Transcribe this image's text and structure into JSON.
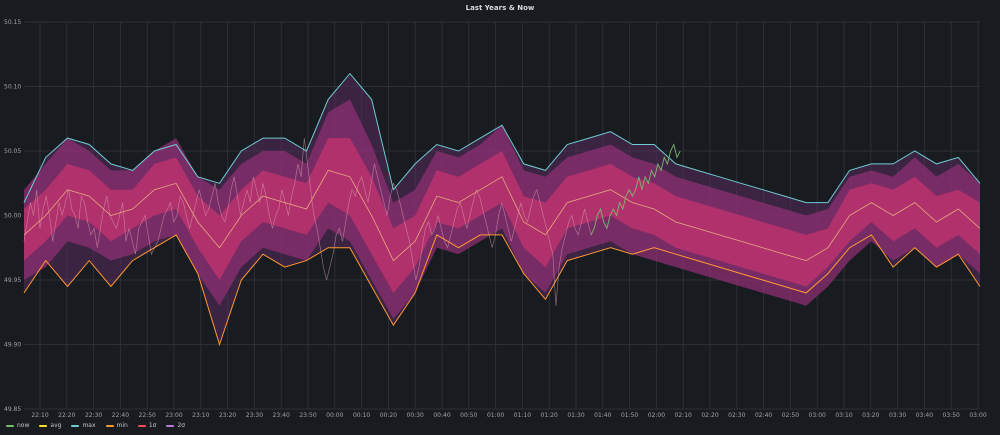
{
  "chart_data": {
    "type": "line",
    "title": "Last Years & Now",
    "xlabel": "",
    "ylabel": "",
    "ylim": [
      49.85,
      50.15
    ],
    "y_ticks": [
      "50.15",
      "50.10",
      "50.05",
      "50.00",
      "49.95",
      "49.90",
      "49.85"
    ],
    "x_ticks": [
      "22:10",
      "22:20",
      "22:30",
      "22:40",
      "22:50",
      "23:00",
      "23:10",
      "23:20",
      "23:30",
      "23:40",
      "23:50",
      "00:00",
      "00:10",
      "00:20",
      "00:30",
      "00:40",
      "00:50",
      "01:00",
      "01:10",
      "01:20",
      "01:30",
      "01:40",
      "01:50",
      "02:00",
      "02:10",
      "02:20",
      "02:30",
      "02:40",
      "02:50",
      "03:00",
      "03:10",
      "03:20",
      "03:30",
      "03:40",
      "03:50",
      "03:00"
    ],
    "grid": true,
    "legend_position": "bottom-left",
    "series": [
      {
        "name": "now",
        "color": "#73bf69",
        "kind": "line"
      },
      {
        "name": "avg",
        "color": "#fade2a",
        "kind": "line"
      },
      {
        "name": "max",
        "color": "#6ecbd2",
        "kind": "line"
      },
      {
        "name": "min",
        "color": "#ff9830",
        "kind": "line"
      },
      {
        "name": "1σ",
        "color": "#f2495c",
        "kind": "band"
      },
      {
        "name": "2σ",
        "color": "#b877d9",
        "kind": "band"
      }
    ],
    "x": [
      0,
      1,
      2,
      3,
      4,
      5,
      6,
      7,
      8,
      9,
      10,
      11,
      12,
      13,
      14,
      15,
      16,
      17,
      18,
      19,
      20,
      21,
      22,
      23,
      24,
      25,
      26,
      27,
      28,
      29,
      30,
      31,
      32,
      33,
      34,
      35,
      36,
      37,
      38,
      39,
      40,
      41,
      42,
      43,
      44
    ],
    "max": [
      50.01,
      50.045,
      50.06,
      50.055,
      50.04,
      50.035,
      50.05,
      50.055,
      50.03,
      50.025,
      50.05,
      50.06,
      50.06,
      50.05,
      50.09,
      50.11,
      50.09,
      50.02,
      50.04,
      50.055,
      50.05,
      50.06,
      50.07,
      50.04,
      50.035,
      50.055,
      50.06,
      50.065,
      50.055,
      50.055,
      50.04,
      50.035,
      50.03,
      50.025,
      50.02,
      50.015,
      50.01,
      50.01,
      50.035,
      50.04,
      50.04,
      50.05,
      50.04,
      50.045,
      50.025
    ],
    "avg": [
      49.985,
      50.0,
      50.02,
      50.015,
      50.0,
      50.005,
      50.02,
      50.025,
      49.995,
      49.975,
      50.0,
      50.015,
      50.01,
      50.005,
      50.035,
      50.03,
      50.0,
      49.965,
      49.98,
      50.015,
      50.01,
      50.02,
      50.03,
      49.995,
      49.985,
      50.01,
      50.015,
      50.02,
      50.01,
      50.005,
      49.995,
      49.99,
      49.985,
      49.98,
      49.975,
      49.97,
      49.965,
      49.975,
      50.0,
      50.01,
      50.0,
      50.01,
      49.995,
      50.005,
      49.99
    ],
    "min": [
      49.94,
      49.965,
      49.945,
      49.965,
      49.945,
      49.965,
      49.975,
      49.985,
      49.955,
      49.9,
      49.95,
      49.97,
      49.96,
      49.965,
      49.975,
      49.975,
      49.945,
      49.915,
      49.94,
      49.985,
      49.975,
      49.985,
      49.985,
      49.955,
      49.935,
      49.965,
      49.97,
      49.975,
      49.97,
      49.975,
      49.97,
      49.965,
      49.96,
      49.955,
      49.95,
      49.945,
      49.94,
      49.955,
      49.975,
      49.985,
      49.96,
      49.975,
      49.96,
      49.97,
      49.945
    ],
    "sigma1_upper": [
      50.005,
      50.02,
      50.04,
      50.035,
      50.02,
      50.02,
      50.04,
      50.045,
      50.015,
      50.0,
      50.02,
      50.035,
      50.03,
      50.025,
      50.06,
      50.06,
      50.03,
      49.99,
      50.0,
      50.035,
      50.03,
      50.04,
      50.05,
      50.015,
      50.01,
      50.03,
      50.035,
      50.04,
      50.03,
      50.025,
      50.015,
      50.01,
      50.005,
      50.0,
      49.995,
      49.99,
      49.985,
      49.99,
      50.02,
      50.025,
      50.02,
      50.03,
      50.015,
      50.02,
      50.01
    ],
    "sigma1_lower": [
      49.965,
      49.98,
      50.0,
      49.995,
      49.98,
      49.99,
      50.0,
      50.005,
      49.975,
      49.95,
      49.98,
      49.995,
      49.99,
      49.985,
      50.01,
      50.0,
      49.97,
      49.94,
      49.96,
      49.995,
      49.99,
      50.0,
      50.01,
      49.975,
      49.96,
      49.99,
      49.995,
      50.0,
      49.99,
      49.985,
      49.975,
      49.97,
      49.965,
      49.96,
      49.955,
      49.95,
      49.945,
      49.96,
      49.98,
      49.995,
      49.98,
      49.99,
      49.975,
      49.985,
      49.97
    ],
    "sigma2_upper": [
      50.02,
      50.04,
      50.06,
      50.05,
      50.035,
      50.035,
      50.05,
      50.06,
      50.03,
      50.02,
      50.04,
      50.05,
      50.05,
      50.04,
      50.08,
      50.09,
      50.055,
      50.01,
      50.02,
      50.05,
      50.045,
      50.055,
      50.07,
      50.035,
      50.03,
      50.045,
      50.05,
      50.055,
      50.045,
      50.04,
      50.03,
      50.025,
      50.02,
      50.015,
      50.01,
      50.005,
      50.0,
      50.005,
      50.03,
      50.035,
      50.03,
      50.045,
      50.03,
      50.04,
      50.025
    ],
    "sigma2_lower": [
      49.95,
      49.96,
      49.98,
      49.975,
      49.965,
      49.97,
      49.98,
      49.985,
      49.955,
      49.93,
      49.96,
      49.975,
      49.97,
      49.965,
      49.99,
      49.98,
      49.95,
      49.92,
      49.94,
      49.975,
      49.97,
      49.98,
      49.99,
      49.955,
      49.94,
      49.97,
      49.975,
      49.98,
      49.97,
      49.965,
      49.96,
      49.955,
      49.95,
      49.945,
      49.94,
      49.935,
      49.93,
      49.945,
      49.965,
      49.98,
      49.965,
      49.975,
      49.96,
      49.97,
      49.955
    ],
    "now_segments": [
      {
        "x_start": 0,
        "x_end": 17.5
      },
      {
        "x_start": 17.5,
        "x_end": 24.5
      },
      {
        "x_start": 24.5,
        "x_end": 30.2
      }
    ],
    "now": [
      49.98,
      49.995,
      50.01,
      50.0,
      50.02,
      49.99,
      50.005,
      50.015,
      50.0,
      49.98,
      49.995,
      50.01,
      50.0,
      50.01,
      50.02,
      50.005,
      50.0,
      49.99,
      50.015,
      50.01,
      49.995,
      49.985,
      49.99,
      49.975,
      49.99,
      50.005,
      50.015,
      50.0,
      49.995,
      49.99,
      50.0,
      50.01,
      49.98,
      49.99,
      49.98,
      49.97,
      49.99,
      49.995,
      50.0,
      49.985,
      49.97,
      49.975,
      49.98,
      49.99,
      50.0,
      50.005,
      50.01,
      49.995,
      50.0,
      50.015,
      50.01,
      50.0,
      49.99,
      50.0,
      50.01,
      50.02,
      50.01,
      50.0,
      50.005,
      50.015,
      50.025,
      50.01,
      50.0,
      49.995,
      50.005,
      50.02,
      50.03,
      50.015,
      50.0,
      50.01,
      50.02,
      50.01,
      50.03,
      50.02,
      50.01,
      50.025,
      50.015,
      50.0,
      49.99,
      50.0,
      50.005,
      50.02,
      50.01,
      50.0,
      50.015,
      50.025,
      50.04,
      50.03,
      50.06,
      50.04,
      50.02,
      50.0,
      49.99,
      49.975,
      49.96,
      49.95,
      49.96,
      49.97,
      49.985,
      49.99,
      49.98,
      49.995,
      50.01,
      50.02,
      50.015,
      50.025,
      50.03,
      50.02,
      50.01,
      50.025,
      50.04,
      50.03,
      50.02,
      50.01,
      50.0,
      50.015,
      50.025,
      50.02,
      50.01,
      50.0,
      49.99,
      49.98,
      49.965,
      49.95,
      49.96,
      49.975,
      49.99,
      49.995,
      49.985,
      49.99,
      50.0,
      49.99,
      49.98,
      49.975,
      49.985,
      49.995,
      50.005,
      50.01,
      50.0,
      49.99,
      50.0,
      50.01,
      50.02,
      50.015,
      50.005,
      49.995,
      49.985,
      49.975,
      49.985,
      50.0,
      50.01,
      50.0,
      49.99,
      49.98,
      49.99,
      50.0,
      50.01,
      50.0,
      49.995,
      50.005,
      50.015,
      50.02,
      50.01,
      50.0,
      49.99,
      49.98,
      49.97,
      49.93,
      49.96,
      49.975,
      49.985,
      49.995,
      50.0,
      49.99,
      49.985,
      49.995,
      50.005,
      49.995,
      49.985,
      49.99,
      50.0,
      50.005,
      49.995,
      49.99,
      50.0,
      50.005,
      50.0,
      50.01,
      50.005,
      50.015,
      50.02,
      50.015,
      50.02,
      50.03,
      50.02,
      50.03,
      50.025,
      50.035,
      50.03,
      50.04,
      50.035,
      50.045,
      50.04,
      50.05,
      50.055,
      50.045,
      50.05
    ]
  },
  "legend": {
    "items": [
      {
        "label": "now",
        "color": "#73bf69"
      },
      {
        "label": "avg",
        "color": "#fade2a"
      },
      {
        "label": "max",
        "color": "#6ecbd2"
      },
      {
        "label": "min",
        "color": "#ff9830"
      },
      {
        "label": "1σ",
        "color": "#f2495c"
      },
      {
        "label": "2σ",
        "color": "#b877d9"
      }
    ]
  }
}
